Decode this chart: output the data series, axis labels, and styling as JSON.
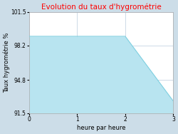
{
  "title": "Evolution du taux d'hygrométrie",
  "title_color": "#ff0000",
  "xlabel": "heure par heure",
  "ylabel": "Taux hygrométrie %",
  "x": [
    0,
    2,
    3
  ],
  "y": [
    99.1,
    99.1,
    92.7
  ],
  "ylim": [
    91.5,
    101.5
  ],
  "xlim": [
    0,
    3
  ],
  "yticks": [
    91.5,
    94.8,
    98.2,
    101.5
  ],
  "xticks": [
    0,
    1,
    2,
    3
  ],
  "line_color": "#7ecfe0",
  "fill_color": "#b8e4f0",
  "background_color": "#ccdde8",
  "plot_bg_color": "#ffffff",
  "grid_color": "#bbccdd",
  "title_fontsize": 7.5,
  "label_fontsize": 6,
  "tick_fontsize": 5.5
}
